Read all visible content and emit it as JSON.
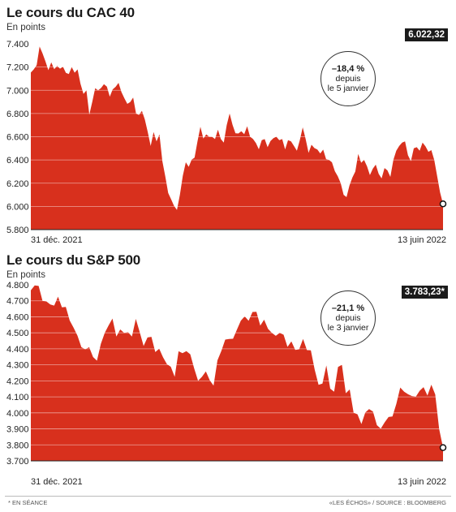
{
  "chart_data": [
    {
      "type": "area",
      "title": "Le cours du CAC 40",
      "subtitle": "En points",
      "ylim": [
        5800,
        7400
      ],
      "yticks": [
        "7.400",
        "7.200",
        "7.000",
        "6.800",
        "6.600",
        "6.400",
        "6.200",
        "6.000",
        "5.800"
      ],
      "ytick_values": [
        7400,
        7200,
        7000,
        6800,
        6600,
        6400,
        6200,
        6000,
        5800
      ],
      "x_start_label": "31 déc. 2021",
      "x_end_label": "13 juin 2022",
      "last_value_label": "6.022,32",
      "annotation": {
        "change": "–18,4 %",
        "line1": "depuis",
        "line2": "le 5 janvier"
      },
      "grid": true,
      "color": "#d8301d",
      "values": [
        7153,
        7180,
        7217,
        7376,
        7318,
        7249,
        7173,
        7240,
        7182,
        7210,
        7186,
        7203,
        7150,
        7140,
        7199,
        7151,
        7180,
        7056,
        6968,
        6999,
        6791,
        6900,
        7017,
        7000,
        7019,
        7053,
        7031,
        6945,
        7008,
        7030,
        7064,
        6984,
        6931,
        6883,
        6899,
        6937,
        6799,
        6788,
        6823,
        6749,
        6640,
        6520,
        6640,
        6560,
        6620,
        6390,
        6258,
        6115,
        6061,
        6005,
        5970,
        6100,
        6264,
        6380,
        6341,
        6403,
        6420,
        6560,
        6685,
        6584,
        6620,
        6600,
        6599,
        6580,
        6660,
        6580,
        6550,
        6700,
        6800,
        6702,
        6629,
        6628,
        6647,
        6622,
        6690,
        6600,
        6581,
        6546,
        6492,
        6570,
        6580,
        6510,
        6564,
        6588,
        6600,
        6570,
        6580,
        6491,
        6570,
        6560,
        6520,
        6480,
        6570,
        6680,
        6580,
        6461,
        6531,
        6502,
        6490,
        6456,
        6489,
        6407,
        6400,
        6380,
        6303,
        6260,
        6200,
        6100,
        6080,
        6180,
        6249,
        6300,
        6452,
        6376,
        6400,
        6346,
        6270,
        6325,
        6360,
        6280,
        6241,
        6330,
        6310,
        6254,
        6400,
        6480,
        6520,
        6550,
        6560,
        6440,
        6390,
        6500,
        6510,
        6480,
        6550,
        6517,
        6470,
        6485,
        6400,
        6260,
        6120,
        6022
      ]
    },
    {
      "type": "area",
      "title": "Le cours du S&P 500",
      "subtitle": "En points",
      "ylim": [
        3700,
        4800
      ],
      "yticks": [
        "4.800",
        "4.700",
        "4.600",
        "4.500",
        "4.400",
        "4.300",
        "4.200",
        "4.100",
        "4.000",
        "3.900",
        "3.800",
        "3.700"
      ],
      "ytick_values": [
        4800,
        4700,
        4600,
        4500,
        4400,
        4300,
        4200,
        4100,
        4000,
        3900,
        3800,
        3700
      ],
      "x_start_label": "31 déc. 2021",
      "x_end_label": "13 juin 2022",
      "last_value_label": "3.783,23*",
      "annotation": {
        "change": "–21,1 %",
        "line1": "depuis",
        "line2": "le 3 janvier"
      },
      "grid": true,
      "color": "#d8301d",
      "values": [
        4766,
        4796,
        4793,
        4700,
        4696,
        4677,
        4670,
        4726,
        4659,
        4662,
        4577,
        4532,
        4482,
        4410,
        4397,
        4410,
        4349,
        4326,
        4431,
        4500,
        4546,
        4589,
        4477,
        4521,
        4500,
        4504,
        4477,
        4587,
        4504,
        4418,
        4471,
        4475,
        4380,
        4401,
        4348,
        4304,
        4288,
        4225,
        4385,
        4373,
        4386,
        4366,
        4278,
        4201,
        4225,
        4259,
        4204,
        4170,
        4328,
        4387,
        4458,
        4462,
        4463,
        4520,
        4576,
        4603,
        4575,
        4630,
        4631,
        4545,
        4582,
        4525,
        4500,
        4481,
        4500,
        4488,
        4412,
        4446,
        4393,
        4397,
        4462,
        4392,
        4391,
        4271,
        4175,
        4183,
        4296,
        4151,
        4132,
        4287,
        4300,
        4123,
        4146,
        4001,
        3991,
        3930,
        4002,
        4024,
        4008,
        3923,
        3901,
        3941,
        3974,
        3978,
        4057,
        4158,
        4132,
        4116,
        4105,
        4101,
        4138,
        4161,
        4108,
        4176,
        4115,
        3900,
        3783
      ]
    }
  ],
  "footer": {
    "note": "* EN SÉANCE",
    "source": "«LES ÉCHOS» / SOURCE : BLOOMBERG"
  }
}
